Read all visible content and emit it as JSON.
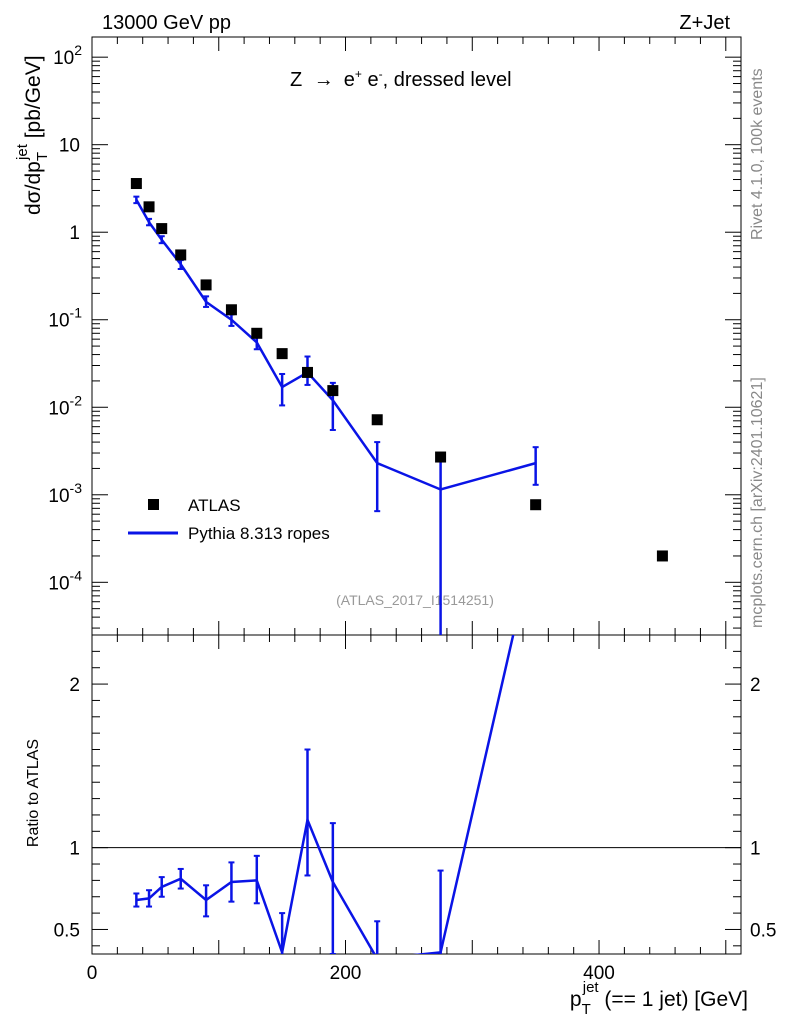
{
  "header": {
    "left": "13000 GeV pp",
    "right": "Z+Jet",
    "side_rivet": "Rivet 4.1.0,  100k events",
    "side_mcplots": "mcplots.cern.ch [arXiv:2401.10621]"
  },
  "colors": {
    "mc": "#0a14e6",
    "data": "#000000",
    "watermark": "#999999",
    "side": "#888888"
  },
  "chart_data": [
    {
      "type": "scatter",
      "title": "Z → e⁺ e⁻, dressed level",
      "ylabel": "dσ/dp_T^jet [pb/GeV]",
      "xlabel": "",
      "yscale": "log",
      "ylim": [
        2.5e-05,
        170
      ],
      "xlim": [
        0,
        512
      ],
      "watermark": "(ATLAS_2017_I1514251)",
      "y_tick_labels": [
        "10^2",
        "10",
        "1",
        "10^-1",
        "10^-2",
        "10^-3",
        "10^-4"
      ],
      "legend_position": "lower-left",
      "series": [
        {
          "name": "ATLAS",
          "style": "markers",
          "x": [
            35,
            45,
            55,
            70,
            90,
            110,
            130,
            150,
            170,
            190,
            225,
            275,
            350,
            450
          ],
          "y": [
            3.6,
            1.95,
            1.1,
            0.55,
            0.25,
            0.13,
            0.07,
            0.041,
            0.025,
            0.0155,
            0.0072,
            0.0027,
            0.00077,
            0.0002
          ]
        },
        {
          "name": "Pythia 8.313 ropes",
          "style": "line",
          "x": [
            35,
            45,
            55,
            70,
            90,
            110,
            130,
            150,
            170,
            190,
            225,
            275,
            350
          ],
          "y": [
            2.35,
            1.3,
            0.82,
            0.43,
            0.16,
            0.1,
            0.055,
            0.017,
            0.025,
            0.012,
            0.0023,
            0.00115,
            0.0023
          ],
          "y_err_low": [
            2.15,
            1.2,
            0.75,
            0.38,
            0.14,
            0.085,
            0.046,
            0.0105,
            0.018,
            0.0055,
            0.00065,
            1e-07,
            0.0013
          ],
          "y_err_high": [
            2.55,
            1.42,
            0.9,
            0.48,
            0.185,
            0.115,
            0.065,
            0.024,
            0.038,
            0.019,
            0.004,
            0.0028,
            0.0035
          ]
        }
      ]
    },
    {
      "type": "line",
      "title": "",
      "ylabel": "Ratio to ATLAS",
      "xlabel": "p_T^jet (== 1 jet) [GeV]",
      "ylim": [
        0.35,
        2.3
      ],
      "xlim": [
        0,
        512
      ],
      "x_ticks": [
        0,
        200,
        400
      ],
      "x_tick_labels": [
        "0",
        "200",
        "400"
      ],
      "y_ticks": [
        0.5,
        1,
        2
      ],
      "y_tick_labels": [
        "0.5",
        "1",
        "2"
      ],
      "reference_line": 1,
      "series": [
        {
          "name": "Pythia 8.313 ropes / ATLAS",
          "x": [
            35,
            45,
            55,
            70,
            90,
            110,
            130,
            150,
            170,
            190,
            225,
            275,
            350
          ],
          "y": [
            0.68,
            0.69,
            0.76,
            0.81,
            0.68,
            0.79,
            0.8,
            0.36,
            1.17,
            0.79,
            0.32,
            0.36,
            2.9
          ],
          "y_err_low": [
            0.64,
            0.64,
            0.7,
            0.75,
            0.58,
            0.67,
            0.66,
            0.25,
            0.83,
            0.35,
            0.1,
            0.01,
            2.4
          ],
          "y_err_high": [
            0.72,
            0.74,
            0.82,
            0.87,
            0.77,
            0.91,
            0.95,
            0.6,
            1.6,
            1.15,
            0.55,
            0.86,
            3.5
          ]
        }
      ]
    }
  ]
}
